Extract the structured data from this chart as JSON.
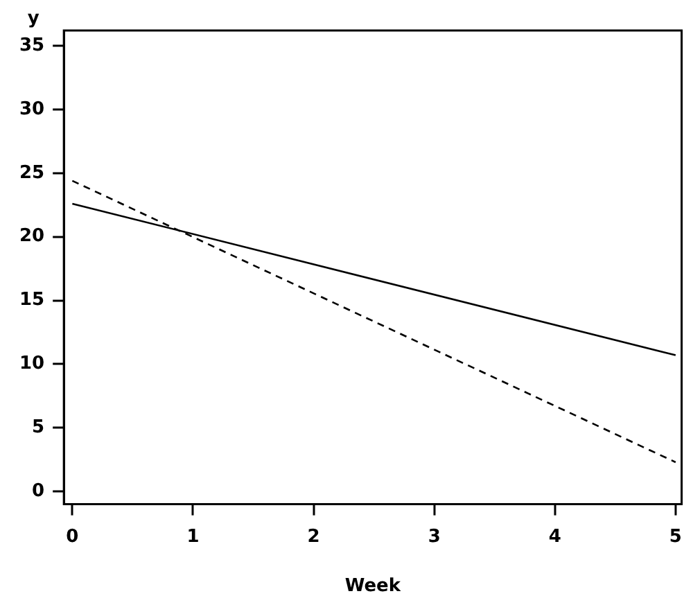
{
  "chart_data": {
    "type": "line",
    "xlabel": "Week",
    "ylabel": "y",
    "x": [
      0,
      5
    ],
    "series": [
      {
        "color": "#000000",
        "values": [
          22.6,
          10.7
        ],
        "line_style": "solid"
      },
      {
        "color": "#000000",
        "values": [
          24.4,
          2.3
        ],
        "line_style": "dashed"
      }
    ],
    "xlim": [
      -0.07,
      5.05
    ],
    "xticks": [
      0,
      1,
      2,
      3,
      4,
      5
    ],
    "ylim": [
      -1,
      36.2
    ],
    "yticks": [
      0,
      5,
      10,
      15,
      20,
      25,
      30,
      35
    ],
    "grid": false,
    "legend": false,
    "marker": "none"
  }
}
